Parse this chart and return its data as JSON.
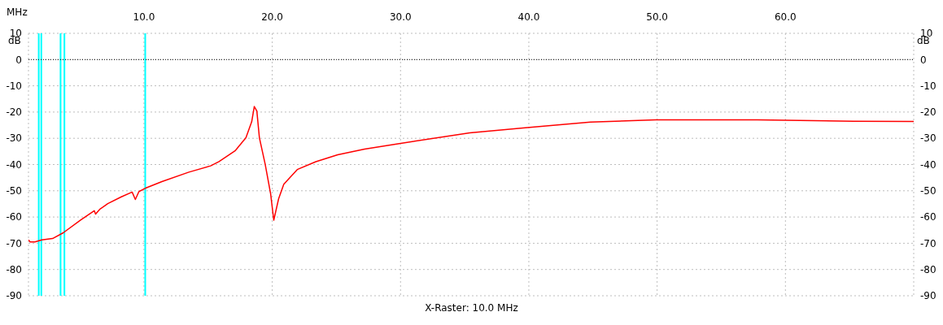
{
  "chart_data": {
    "type": "line",
    "xlabel": "MHz",
    "ylabel": "dB",
    "y2label": "dB",
    "annotations": [
      "X-Raster: 10.0 MHz"
    ],
    "x": [
      1.0,
      1.13,
      1.5,
      2.04,
      2.88,
      3.71,
      5.08,
      6.13,
      6.23,
      6.55,
      7.18,
      8.24,
      9.08,
      9.33,
      9.61,
      10.13,
      11.4,
      13.5,
      15.2,
      15.85,
      17.1,
      17.95,
      18.4,
      18.6,
      18.8,
      19.0,
      19.45,
      19.87,
      20.12,
      20.5,
      20.9,
      21.95,
      23.4,
      25.1,
      27.2,
      29.9,
      35.4,
      39.9,
      44.8,
      49.9,
      57.8,
      65.3,
      70.0
    ],
    "series": [
      {
        "color": "#ff0000",
        "values": [
          -68.7,
          -69.5,
          -69.5,
          -68.7,
          -68.2,
          -66.0,
          -61.1,
          -57.6,
          -58.9,
          -57.1,
          -54.9,
          -52.3,
          -50.5,
          -53.3,
          -50.3,
          -49.0,
          -46.5,
          -42.9,
          -40.5,
          -38.9,
          -34.8,
          -29.8,
          -23.7,
          -17.9,
          -19.6,
          -29.8,
          -39.9,
          -51.0,
          -61.2,
          -53.0,
          -47.5,
          -41.9,
          -38.9,
          -36.3,
          -34.1,
          -32.0,
          -27.9,
          -25.9,
          -23.8,
          -23.0,
          -23.0,
          -23.5,
          -23.6
        ]
      }
    ],
    "xlim": [
      1,
      70
    ],
    "xticks": [
      {
        "value": 10,
        "label": "10.0"
      },
      {
        "value": 20,
        "label": "20.0"
      },
      {
        "value": 30,
        "label": "30.0"
      },
      {
        "value": 40,
        "label": "40.0"
      },
      {
        "value": 50,
        "label": "50.0"
      },
      {
        "value": 60,
        "label": "60.0"
      }
    ],
    "ylim": [
      -90,
      10
    ],
    "yticks": [
      -90,
      -80,
      -70,
      -60,
      -50,
      -40,
      -30,
      -20,
      -10,
      0,
      10
    ],
    "y2lim": [
      -90,
      10
    ],
    "y2ticks": [
      -90,
      -80,
      -70,
      -60,
      -50,
      -40,
      -30,
      -20,
      -10,
      0,
      10
    ],
    "ref_lines": [
      {
        "axis": "x",
        "value": 1.8,
        "color": "#00ffff",
        "line_style": "solid"
      },
      {
        "axis": "x",
        "value": 2.0,
        "color": "#00ffff",
        "line_style": "solid"
      },
      {
        "axis": "x",
        "value": 3.5,
        "color": "#00ffff",
        "line_style": "solid"
      },
      {
        "axis": "x",
        "value": 3.8,
        "color": "#00ffff",
        "line_style": "solid"
      },
      {
        "axis": "x",
        "value": 10.1,
        "color": "#00ffff",
        "line_style": "solid"
      },
      {
        "axis": "y",
        "value": 0,
        "color": "#000000",
        "line_style": "dotted"
      }
    ],
    "grid": true,
    "marker": "none",
    "line_style": "solid"
  }
}
